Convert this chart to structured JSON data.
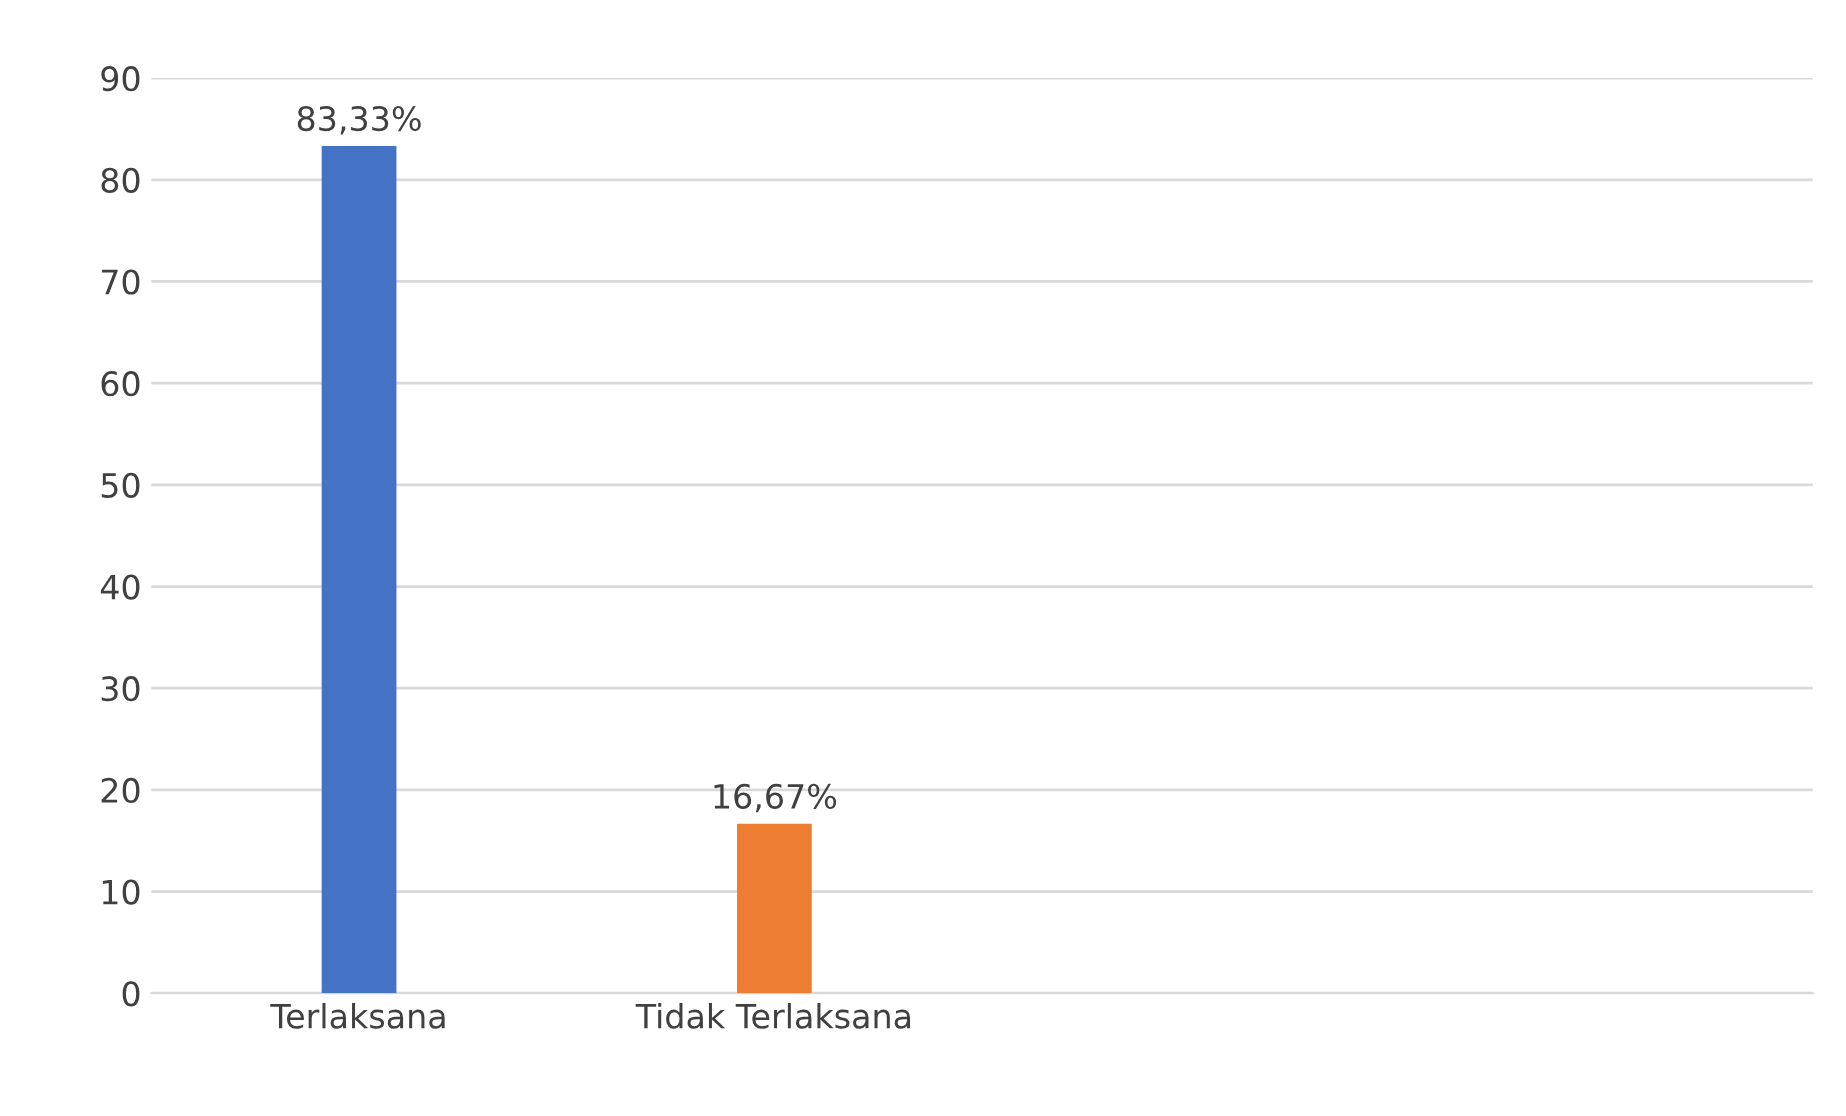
{
  "chart_data": {
    "type": "bar",
    "categories": [
      "Terlaksana",
      "Tidak Terlaksana",
      null,
      null
    ],
    "values": [
      83.33,
      16.67,
      null,
      null
    ],
    "colors": [
      "#4472c4",
      "#ed7d31",
      "#4472c4",
      "#4472c4"
    ],
    "value_labels": [
      "83,33%",
      "16,67%",
      null,
      null
    ],
    "ylim": [
      0,
      90
    ],
    "yticks": [
      0,
      10,
      20,
      30,
      40,
      50,
      60,
      70,
      80,
      90
    ],
    "grid": "y",
    "legend": false
  }
}
